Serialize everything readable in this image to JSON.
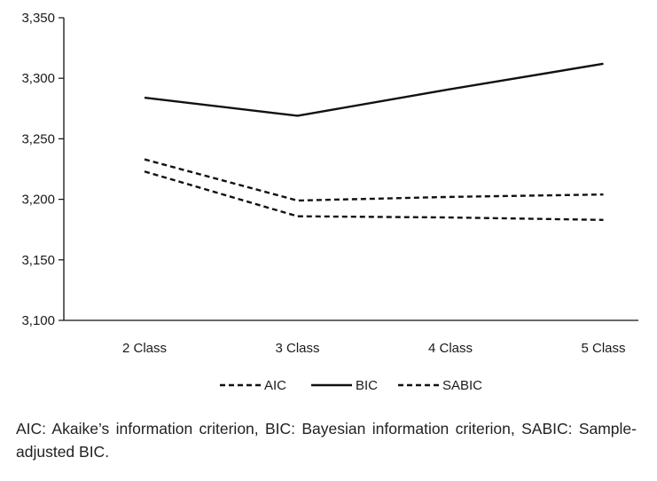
{
  "chart_data": {
    "type": "line",
    "categories": [
      "2 Class",
      "3 Class",
      "4 Class",
      "5 Class"
    ],
    "series": [
      {
        "name": "AIC",
        "style": "dashed",
        "values": [
          3223,
          3186,
          3185,
          3183
        ]
      },
      {
        "name": "BIC",
        "style": "solid",
        "values": [
          3284,
          3269,
          3291,
          3312
        ]
      },
      {
        "name": "SABIC",
        "style": "dashed",
        "values": [
          3233,
          3199,
          3202,
          3204
        ]
      }
    ],
    "ylim": [
      3100,
      3350
    ],
    "yticks": [
      "3,100",
      "3,150",
      "3,200",
      "3,250",
      "3,300",
      "3,350"
    ],
    "ytick_values": [
      3100,
      3150,
      3200,
      3250,
      3300,
      3350
    ],
    "grid": false,
    "legend_position": "bottom",
    "line_color": "#111111"
  },
  "caption": "AIC: Akaike’s information criterion, BIC: Bayesian information criterion, SABIC: Sample-adjusted  BIC."
}
